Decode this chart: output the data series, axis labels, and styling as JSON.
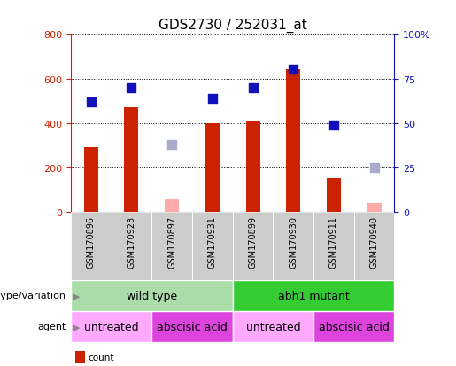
{
  "title": "GDS2730 / 252031_at",
  "samples": [
    "GSM170896",
    "GSM170923",
    "GSM170897",
    "GSM170931",
    "GSM170899",
    "GSM170930",
    "GSM170911",
    "GSM170940"
  ],
  "count_values": [
    290,
    470,
    null,
    400,
    410,
    640,
    150,
    null
  ],
  "count_absent": [
    null,
    null,
    60,
    null,
    null,
    null,
    null,
    40
  ],
  "rank_values": [
    62,
    70,
    null,
    64,
    70,
    80,
    49,
    null
  ],
  "rank_absent": [
    null,
    null,
    38,
    null,
    null,
    null,
    null,
    25
  ],
  "left_ylim": [
    0,
    800
  ],
  "right_ylim": [
    0,
    100
  ],
  "left_yticks": [
    0,
    200,
    400,
    600,
    800
  ],
  "right_yticks": [
    0,
    25,
    50,
    75,
    100
  ],
  "right_yticklabels": [
    "0",
    "25",
    "50",
    "75",
    "100%"
  ],
  "bar_color": "#cc2200",
  "bar_absent_color": "#ffaaaa",
  "rank_color": "#1111bb",
  "rank_absent_color": "#aaaacc",
  "bg_color": "#ffffff",
  "genotype_groups": [
    {
      "label": "wild type",
      "start": 0,
      "end": 4,
      "color": "#aaeea a"
    },
    {
      "label": "abh1 mutant",
      "start": 4,
      "end": 8,
      "color": "#33dd33"
    }
  ],
  "agent_groups": [
    {
      "label": "untreated",
      "start": 0,
      "end": 2,
      "color": "#ffaaff"
    },
    {
      "label": "abscisic acid",
      "start": 2,
      "end": 4,
      "color": "#dd44dd"
    },
    {
      "label": "untreated",
      "start": 4,
      "end": 6,
      "color": "#ffaaff"
    },
    {
      "label": "abscisic acid",
      "start": 6,
      "end": 8,
      "color": "#dd44dd"
    }
  ],
  "left_label_color": "#cc2200",
  "right_label_color": "#1111bb",
  "bar_width": 0.35,
  "rank_square_size": 60,
  "xticklabel_bg": "#cccccc",
  "genotype_light_color": "#bbeeaa",
  "genotype_dark_color": "#33dd33",
  "agent_light_color": "#ffaaff",
  "agent_dark_color": "#dd44dd"
}
